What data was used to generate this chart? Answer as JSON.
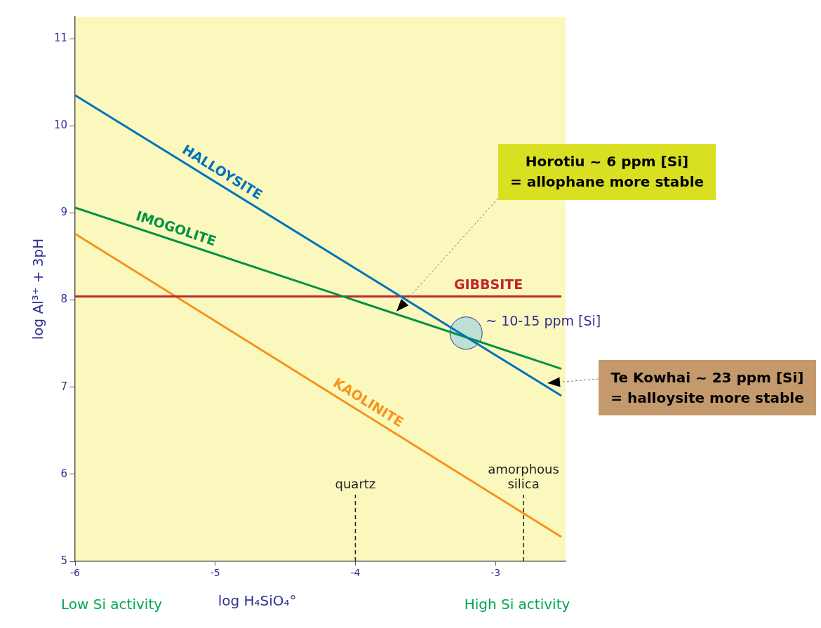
{
  "chart_data": {
    "type": "line",
    "xlabel": "log H₄SiO₄°",
    "ylabel": "log Al³⁺ + 3pH",
    "xlim": [
      -6,
      -2.5
    ],
    "ylim": [
      5,
      11.25
    ],
    "xticks": [
      -6,
      -5,
      -4,
      -3
    ],
    "yticks": [
      5,
      6,
      7,
      8,
      9,
      10,
      11
    ],
    "marker": "none",
    "series": [
      {
        "name": "HALLOYSITE",
        "color": "#0072bc",
        "x": [
          -6,
          -2.53
        ],
        "values": [
          10.35,
          6.9
        ]
      },
      {
        "name": "IMOGOLITE",
        "color": "#009245",
        "x": [
          -6,
          -2.53
        ],
        "values": [
          9.06,
          7.21
        ]
      },
      {
        "name": "GIBBSITE",
        "color": "#c1272d",
        "x": [
          -6,
          -2.53
        ],
        "values": [
          8.04,
          8.04
        ]
      },
      {
        "name": "KAOLINITE",
        "color": "#f7931e",
        "x": [
          -6,
          -2.53
        ],
        "values": [
          8.76,
          5.28
        ]
      },
      {
        "type": "scatter",
        "marker": "circle",
        "color": "#bfe0d5",
        "x": [
          -3.21
        ],
        "values": [
          7.62
        ]
      }
    ],
    "ref_lines": [
      {
        "axis": "x",
        "value": -4,
        "label": "quartz",
        "line_style": "dashed",
        "color": "#231f20"
      },
      {
        "axis": "x",
        "value": -2.8,
        "label": "amorphous silica",
        "line_style": "dashed",
        "color": "#231f20"
      }
    ],
    "annotations": [
      {
        "text": "~ 10-15 ppm [Si]",
        "x": -3.21,
        "y": 7.62
      },
      "Horotiu ~ 6 ppm [Si]\n= allophane more stable",
      "Te Kowhai ~ 23 ppm [Si]\n= halloysite more stable",
      "Low Si activity",
      "High Si activity"
    ]
  }
}
